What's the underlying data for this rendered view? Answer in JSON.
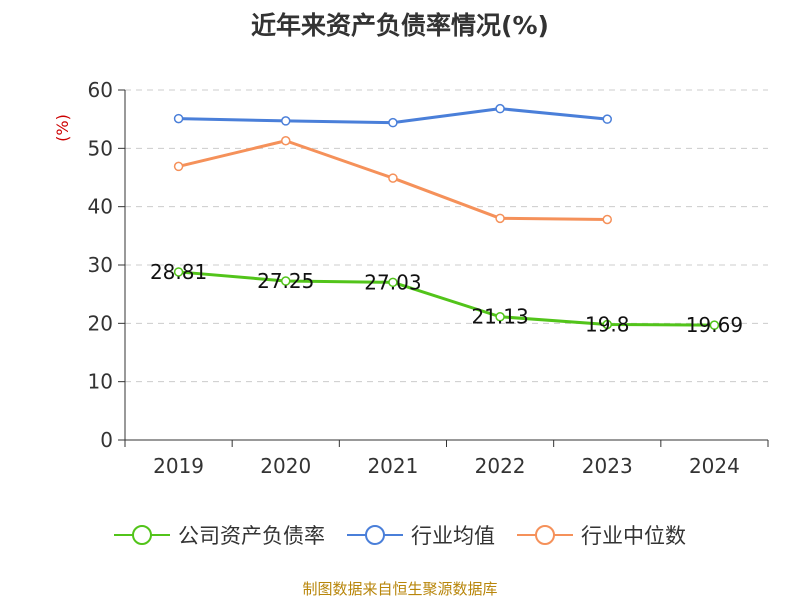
{
  "chart_data": {
    "type": "line",
    "title": "近年来资产负债率情况(%)",
    "ylabel": "(%)",
    "xlabel": "",
    "categories": [
      "2019",
      "2020",
      "2021",
      "2022",
      "2023",
      "2024"
    ],
    "ylim": [
      0,
      60
    ],
    "yticks": [
      0,
      10,
      20,
      30,
      40,
      50,
      60
    ],
    "grid": true,
    "legend_position": "bottom",
    "series": [
      {
        "name": "公司资产负债率",
        "color": "#52c41a",
        "values": [
          28.81,
          27.25,
          27.03,
          21.13,
          19.8,
          19.69
        ],
        "labels": [
          "28.81",
          "27.25",
          "27.03",
          "21.13",
          "19.8",
          "19.69"
        ]
      },
      {
        "name": "行业均值",
        "color": "#4a7fd9",
        "values": [
          55.1,
          54.7,
          54.4,
          56.8,
          55.0,
          null
        ]
      },
      {
        "name": "行业中位数",
        "color": "#f5915a",
        "values": [
          46.9,
          51.3,
          44.9,
          38.0,
          37.8,
          null
        ]
      }
    ]
  },
  "source_note": "制图数据来自恒生聚源数据库"
}
